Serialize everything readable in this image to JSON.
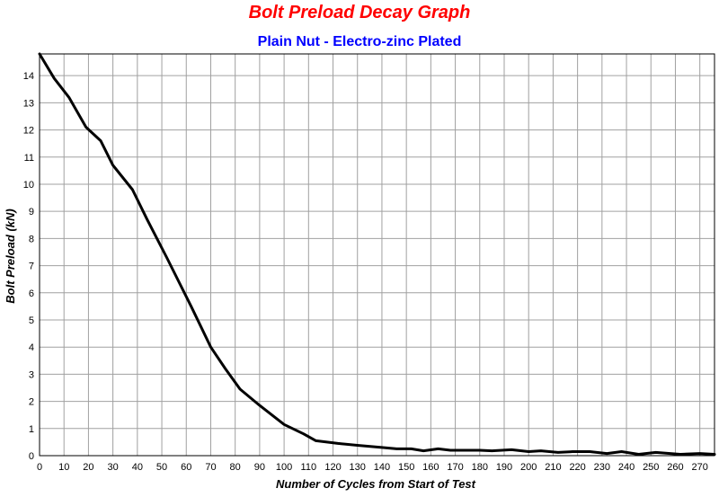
{
  "chart_data": {
    "type": "line",
    "title": "Bolt Preload Decay Graph",
    "subtitle": "Plain Nut - Electro-zinc Plated",
    "xlabel": "Number of Cycles from Start of Test",
    "ylabel": "Bolt Preload (kN)",
    "xlim": [
      0,
      276
    ],
    "ylim": [
      0,
      14.8
    ],
    "xticks": [
      0,
      10,
      20,
      30,
      40,
      50,
      60,
      70,
      80,
      90,
      100,
      110,
      120,
      130,
      140,
      150,
      160,
      170,
      180,
      190,
      200,
      210,
      220,
      230,
      240,
      250,
      260,
      270
    ],
    "yticks": [
      0,
      1,
      2,
      3,
      4,
      5,
      6,
      7,
      8,
      9,
      10,
      11,
      12,
      13,
      14
    ],
    "grid": true,
    "colors": {
      "title": "#ff0000",
      "subtitle": "#0000ff",
      "line": "#000000",
      "grid": "#a0a0a0"
    },
    "series": [
      {
        "x": [
          0,
          6,
          12,
          19,
          25,
          30,
          38,
          44,
          52,
          62,
          70,
          76,
          82,
          90,
          100,
          108,
          113,
          122,
          130,
          140,
          146,
          152,
          157,
          163,
          168,
          180,
          185,
          193,
          200,
          205,
          212,
          218,
          225,
          232,
          238,
          245,
          252,
          262,
          270,
          276
        ],
        "y": [
          14.8,
          13.9,
          13.2,
          12.1,
          11.6,
          10.7,
          9.8,
          8.7,
          7.3,
          5.5,
          4.0,
          3.2,
          2.45,
          1.85,
          1.15,
          0.8,
          0.55,
          0.45,
          0.38,
          0.3,
          0.25,
          0.25,
          0.18,
          0.25,
          0.2,
          0.2,
          0.18,
          0.22,
          0.15,
          0.18,
          0.12,
          0.15,
          0.15,
          0.08,
          0.15,
          0.05,
          0.12,
          0.05,
          0.08,
          0.05
        ]
      }
    ]
  }
}
